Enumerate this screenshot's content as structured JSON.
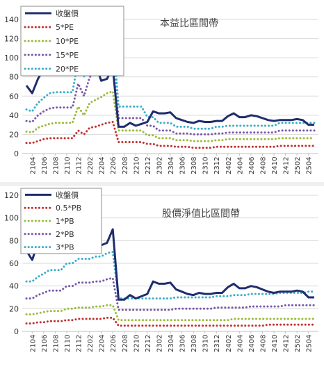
{
  "chart_data": [
    {
      "type": "line",
      "title": "本益比區間帶",
      "ylim": [
        0,
        140
      ],
      "yticks": [
        0,
        20,
        40,
        60,
        80,
        100,
        120,
        140
      ],
      "grid": "horizontal",
      "legend_placement": "top-left",
      "x_labels_shown": [
        "2104",
        "2106",
        "2108",
        "2110",
        "2112",
        "2202",
        "2204",
        "2206",
        "2208",
        "2210",
        "2212",
        "2302",
        "2304",
        "2306",
        "2308",
        "2310",
        "2312",
        "2402",
        "2404",
        "2406",
        "2408",
        "2410",
        "2412",
        "2502",
        "2504"
      ],
      "x": [
        "2103",
        "2104",
        "2105",
        "2106",
        "2107",
        "2108",
        "2109",
        "2110",
        "2111",
        "2112",
        "2201",
        "2202",
        "2203",
        "2204",
        "2205",
        "2206",
        "2207",
        "2208",
        "2209",
        "2210",
        "2211",
        "2212",
        "2301",
        "2302",
        "2303",
        "2304",
        "2305",
        "2306",
        "2307",
        "2308",
        "2309",
        "2310",
        "2311",
        "2312",
        "2401",
        "2402",
        "2403",
        "2404",
        "2405",
        "2406",
        "2407",
        "2408",
        "2409",
        "2410",
        "2411",
        "2412",
        "2501",
        "2502",
        "2503",
        "2504",
        "2505"
      ],
      "series": [
        {
          "name": "收盤價",
          "color": "#1f2d6e",
          "style": "solid",
          "values": [
            71,
            63,
            78,
            88,
            98,
            92,
            102,
            100,
            98,
            97,
            109,
            90,
            93,
            76,
            78,
            90,
            28,
            28,
            32,
            29,
            31,
            33,
            44,
            42,
            42,
            43,
            37,
            35,
            33,
            32,
            34,
            33,
            33,
            34,
            34,
            39,
            42,
            38,
            38,
            40,
            39,
            37,
            35,
            34,
            35,
            35,
            35,
            36,
            35,
            30,
            30
          ]
        },
        {
          "name": "5*PE",
          "color": "#c0302f",
          "style": "dotted",
          "values": [
            11,
            11,
            13,
            15,
            16,
            16,
            16,
            16,
            16,
            24,
            20,
            27,
            28,
            30,
            32,
            33,
            12,
            12,
            12,
            12,
            12,
            10,
            10,
            8,
            8,
            8,
            7,
            7,
            7,
            6,
            6,
            6,
            6,
            7,
            7,
            7,
            7,
            7,
            7,
            7,
            7,
            7,
            7,
            7,
            8,
            8,
            8,
            8,
            8,
            8,
            8
          ]
        },
        {
          "name": "10*PE",
          "color": "#9bbb3b",
          "style": "dotted",
          "values": [
            23,
            22,
            27,
            29,
            31,
            32,
            32,
            32,
            32,
            49,
            40,
            53,
            56,
            59,
            63,
            65,
            24,
            24,
            24,
            24,
            24,
            19,
            19,
            16,
            16,
            16,
            14,
            14,
            14,
            13,
            13,
            13,
            13,
            14,
            14,
            15,
            15,
            15,
            15,
            15,
            15,
            15,
            15,
            15,
            16,
            16,
            16,
            16,
            16,
            16,
            16
          ]
        },
        {
          "name": "15*PE",
          "color": "#7a57a8",
          "style": "dotted",
          "values": [
            34,
            33,
            40,
            44,
            47,
            48,
            48,
            48,
            48,
            73,
            60,
            80,
            84,
            89,
            95,
            96,
            37,
            37,
            37,
            37,
            37,
            29,
            29,
            24,
            24,
            24,
            21,
            21,
            21,
            20,
            20,
            20,
            20,
            21,
            21,
            22,
            22,
            22,
            22,
            22,
            22,
            22,
            22,
            22,
            24,
            24,
            24,
            24,
            24,
            24,
            24
          ]
        },
        {
          "name": "20*PE",
          "color": "#3aaec9",
          "style": "dotted",
          "values": [
            46,
            44,
            53,
            58,
            63,
            64,
            64,
            64,
            64,
            98,
            80,
            107,
            112,
            119,
            127,
            128,
            49,
            49,
            49,
            49,
            49,
            38,
            38,
            32,
            32,
            32,
            28,
            28,
            28,
            26,
            26,
            26,
            26,
            28,
            28,
            29,
            29,
            29,
            29,
            29,
            29,
            29,
            29,
            29,
            32,
            32,
            32,
            32,
            32,
            32,
            32
          ]
        }
      ]
    },
    {
      "type": "line",
      "title": "股價淨值比區間帶",
      "ylim": [
        0,
        120
      ],
      "yticks": [
        0,
        20,
        40,
        60,
        80,
        100,
        120
      ],
      "grid": "horizontal",
      "legend_placement": "top-left",
      "x_labels_shown": [
        "2104",
        "2106",
        "2108",
        "2110",
        "2112",
        "2202",
        "2204",
        "2206",
        "2208",
        "2210",
        "2212",
        "2302",
        "2304",
        "2306",
        "2308",
        "2310",
        "2312",
        "2402",
        "2404",
        "2406",
        "2408",
        "2410",
        "2412",
        "2502",
        "2504"
      ],
      "x": [
        "2103",
        "2104",
        "2105",
        "2106",
        "2107",
        "2108",
        "2109",
        "2110",
        "2111",
        "2112",
        "2201",
        "2202",
        "2203",
        "2204",
        "2205",
        "2206",
        "2207",
        "2208",
        "2209",
        "2210",
        "2211",
        "2212",
        "2301",
        "2302",
        "2303",
        "2304",
        "2305",
        "2306",
        "2307",
        "2308",
        "2309",
        "2310",
        "2311",
        "2312",
        "2401",
        "2402",
        "2403",
        "2404",
        "2405",
        "2406",
        "2407",
        "2408",
        "2409",
        "2410",
        "2411",
        "2412",
        "2501",
        "2502",
        "2503",
        "2504",
        "2505"
      ],
      "series": [
        {
          "name": "收盤價",
          "color": "#1f2d6e",
          "style": "solid",
          "values": [
            71,
            63,
            78,
            88,
            98,
            92,
            102,
            100,
            98,
            97,
            109,
            90,
            93,
            76,
            78,
            90,
            28,
            28,
            32,
            29,
            31,
            33,
            44,
            42,
            42,
            43,
            37,
            35,
            33,
            32,
            34,
            33,
            33,
            34,
            34,
            39,
            42,
            38,
            38,
            40,
            39,
            37,
            35,
            34,
            35,
            35,
            35,
            36,
            35,
            30,
            30
          ]
        },
        {
          "name": "0.5*PB",
          "color": "#c0302f",
          "style": "dotted",
          "values": [
            7,
            7,
            8,
            8,
            9,
            9,
            9,
            10,
            10,
            11,
            11,
            11,
            11,
            11,
            12,
            12,
            5,
            5,
            5,
            5,
            5,
            5,
            5,
            5,
            5,
            5,
            5,
            5,
            5,
            5,
            5,
            5,
            5,
            5,
            5,
            5,
            5,
            5,
            5,
            5,
            5,
            5,
            6,
            6,
            6,
            6,
            6,
            6,
            6,
            6,
            6
          ]
        },
        {
          "name": "1*PB",
          "color": "#9bbb3b",
          "style": "dotted",
          "values": [
            15,
            15,
            16,
            17,
            18,
            18,
            18,
            20,
            20,
            21,
            21,
            21,
            22,
            22,
            23,
            23,
            10,
            10,
            10,
            10,
            10,
            10,
            10,
            10,
            10,
            10,
            10,
            10,
            10,
            10,
            10,
            10,
            10,
            10,
            10,
            10,
            11,
            11,
            11,
            11,
            11,
            11,
            11,
            11,
            11,
            11,
            11,
            11,
            11,
            11,
            11
          ]
        },
        {
          "name": "2*PB",
          "color": "#7a57a8",
          "style": "dotted",
          "values": [
            29,
            29,
            32,
            34,
            36,
            36,
            36,
            40,
            40,
            43,
            43,
            43,
            44,
            44,
            46,
            47,
            19,
            19,
            19,
            19,
            19,
            19,
            19,
            19,
            19,
            19,
            20,
            20,
            20,
            20,
            20,
            20,
            20,
            21,
            21,
            21,
            21,
            21,
            21,
            22,
            22,
            22,
            22,
            22,
            22,
            23,
            23,
            23,
            23,
            23,
            23
          ]
        },
        {
          "name": "3*PB",
          "color": "#3aaec9",
          "style": "dotted",
          "values": [
            44,
            44,
            48,
            51,
            54,
            54,
            54,
            60,
            60,
            64,
            64,
            64,
            66,
            66,
            69,
            70,
            29,
            29,
            29,
            29,
            29,
            29,
            29,
            29,
            29,
            29,
            30,
            30,
            30,
            30,
            30,
            30,
            30,
            31,
            31,
            31,
            32,
            32,
            32,
            33,
            33,
            33,
            33,
            33,
            34,
            34,
            34,
            34,
            34,
            35,
            35
          ]
        }
      ]
    }
  ]
}
